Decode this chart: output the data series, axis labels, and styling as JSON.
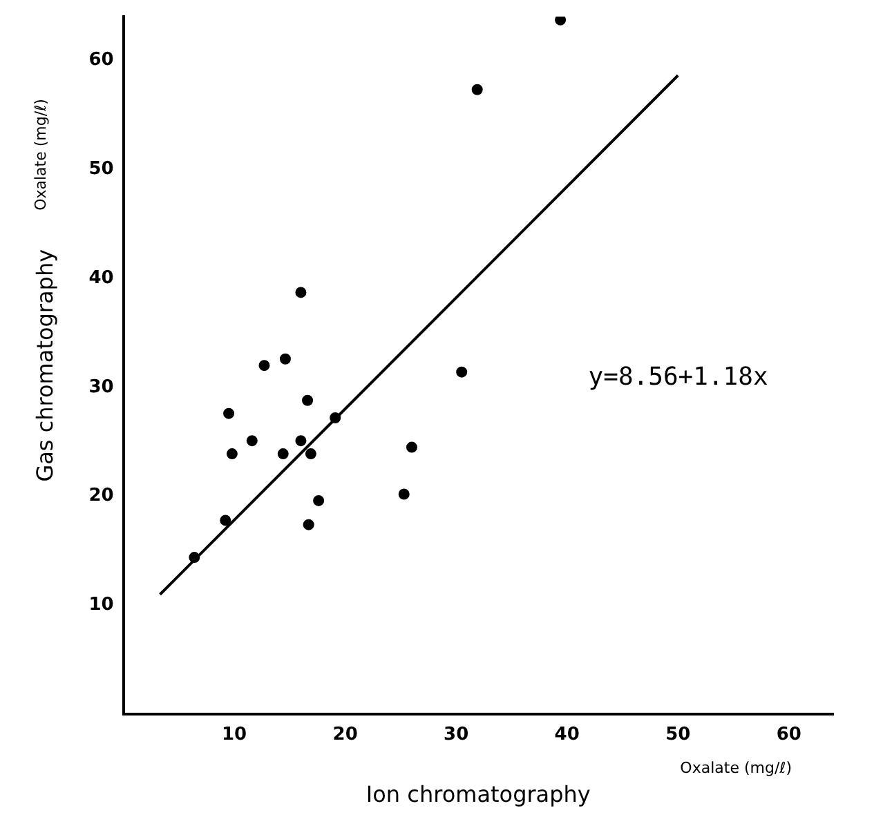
{
  "chart_data": {
    "type": "scatter",
    "xlabel": "Ion chromatography",
    "ylabel": "Gas chromatography",
    "xlim": [
      0,
      64
    ],
    "ylim": [
      0,
      64
    ],
    "xticks": [
      10,
      20,
      30,
      40,
      50,
      60
    ],
    "yticks": [
      10,
      20,
      30,
      40,
      50,
      60
    ],
    "grid": false,
    "legend": false,
    "annotations": [
      "y=8.56+1.18x",
      "Oxalate (mg/ℓ)",
      "Oxalate (mg/ℓ)"
    ],
    "series": [
      {
        "type": "scatter",
        "marker": "circle",
        "color": "#000000",
        "x": [
          16.0,
          12.7,
          14.6,
          30.5,
          16.6,
          9.5,
          19.1,
          11.6,
          16.0,
          9.8,
          14.4,
          16.9,
          26.0,
          25.3,
          17.6,
          16.7,
          9.2,
          6.4,
          31.9,
          39.4
        ],
        "values": [
          38.7,
          32.0,
          32.6,
          31.4,
          28.8,
          27.6,
          27.2,
          25.1,
          25.1,
          23.9,
          23.9,
          23.9,
          24.5,
          20.2,
          19.6,
          17.4,
          17.8,
          14.4,
          57.3,
          63.7
        ]
      },
      {
        "type": "line",
        "marker": "none",
        "line_style": "solid",
        "color": "#000000",
        "x": [
          3.3,
          50.0
        ],
        "values": [
          11.0,
          58.6
        ]
      }
    ]
  }
}
